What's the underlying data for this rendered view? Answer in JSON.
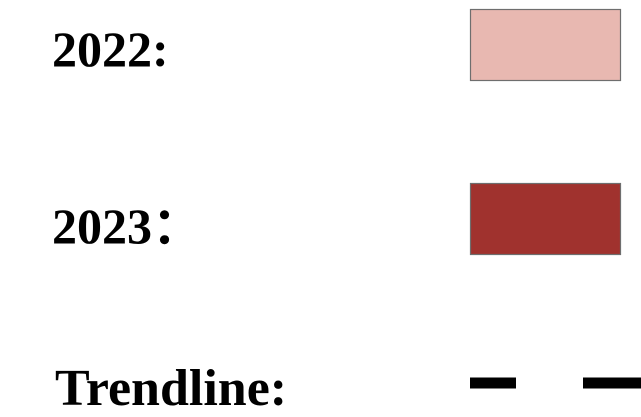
{
  "legend": {
    "items": [
      {
        "label": "2022:",
        "color": "#e8b8b1"
      },
      {
        "label": "2023：",
        "color": "#a0322e"
      },
      {
        "label": "Trendline:"
      }
    ]
  }
}
